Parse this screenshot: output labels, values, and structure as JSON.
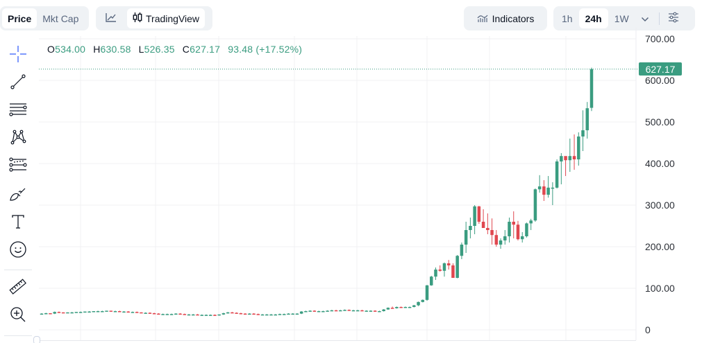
{
  "toolbar": {
    "type_options": [
      {
        "label": "Price",
        "active": true
      },
      {
        "label": "Mkt Cap",
        "active": false
      }
    ],
    "chart_options": [
      {
        "label": "",
        "icon": "line-chart-icon",
        "active": false
      },
      {
        "label": "TradingView",
        "icon": "candlestick-icon",
        "active": true
      }
    ],
    "indicators_label": "Indicators",
    "indicators_icon": "indicators-icon",
    "timeframes": [
      {
        "label": "1h",
        "active": false
      },
      {
        "label": "24h",
        "active": true
      },
      {
        "label": "1W",
        "active": false
      }
    ],
    "timeframe_more_icon": "chevron-down-icon",
    "settings_icon": "sliders-icon"
  },
  "drawing_tools": [
    {
      "name": "crosshair-icon",
      "active": true
    },
    {
      "name": "trend-line-icon"
    },
    {
      "name": "horizontal-lines-icon"
    },
    {
      "name": "pattern-icon"
    },
    {
      "name": "fib-retracement-icon"
    },
    {
      "name": "brush-icon"
    },
    {
      "name": "text-icon"
    },
    {
      "name": "emoji-icon"
    },
    {
      "name": "ruler-icon"
    },
    {
      "name": "zoom-in-icon"
    }
  ],
  "ohlc": {
    "open_key": "O",
    "open": "534.00",
    "high_key": "H",
    "high": "630.58",
    "low_key": "L",
    "low": "526.35",
    "close_key": "C",
    "close": "627.17",
    "change": "93.48 (+17.52%)"
  },
  "last_price_tag": "627.17",
  "colors": {
    "up": "#3a9c80",
    "down": "#e0474f",
    "grid": "#f0f1f3",
    "last_price_line": "#3a9c80"
  },
  "chart_data": {
    "type": "candlestick",
    "title": "",
    "xlabel": "",
    "ylabel": "Price",
    "ylim": [
      0,
      700
    ],
    "y_ticks": [
      "700.00",
      "600.00",
      "500.00",
      "400.00",
      "300.00",
      "200.00",
      "100.00",
      "0"
    ],
    "grid": true,
    "last_price": 627.17,
    "candles": [
      [
        38,
        40,
        37,
        39
      ],
      [
        39,
        41,
        38,
        40
      ],
      [
        40,
        40,
        38,
        39
      ],
      [
        39,
        44,
        38,
        43
      ],
      [
        43,
        44,
        41,
        42
      ],
      [
        42,
        42,
        40,
        41
      ],
      [
        41,
        42,
        40,
        42
      ],
      [
        42,
        43,
        41,
        42
      ],
      [
        42,
        43,
        41,
        43
      ],
      [
        43,
        44,
        42,
        43
      ],
      [
        43,
        44,
        42,
        44
      ],
      [
        44,
        45,
        43,
        44
      ],
      [
        44,
        45,
        43,
        45
      ],
      [
        45,
        46,
        44,
        45
      ],
      [
        45,
        46,
        44,
        45
      ],
      [
        45,
        46,
        44,
        46
      ],
      [
        46,
        46,
        44,
        45
      ],
      [
        45,
        46,
        44,
        45
      ],
      [
        45,
        46,
        43,
        44
      ],
      [
        44,
        45,
        43,
        44
      ],
      [
        44,
        45,
        42,
        43
      ],
      [
        43,
        44,
        42,
        43
      ],
      [
        43,
        44,
        41,
        42
      ],
      [
        42,
        42,
        40,
        41
      ],
      [
        41,
        42,
        40,
        41
      ],
      [
        41,
        42,
        39,
        40
      ],
      [
        40,
        41,
        38,
        39
      ],
      [
        39,
        40,
        37,
        38
      ],
      [
        38,
        39,
        37,
        38
      ],
      [
        38,
        39,
        37,
        38
      ],
      [
        38,
        39,
        37,
        38
      ],
      [
        38,
        40,
        37,
        39
      ],
      [
        39,
        40,
        37,
        38
      ],
      [
        38,
        39,
        36,
        37
      ],
      [
        37,
        38,
        36,
        37
      ],
      [
        37,
        38,
        36,
        37
      ],
      [
        37,
        38,
        35,
        36
      ],
      [
        36,
        37,
        35,
        36
      ],
      [
        36,
        37,
        35,
        36
      ],
      [
        36,
        37,
        35,
        36
      ],
      [
        36,
        37,
        34,
        35
      ],
      [
        35,
        37,
        34,
        37
      ],
      [
        37,
        41,
        36,
        40
      ],
      [
        40,
        43,
        39,
        42
      ],
      [
        42,
        43,
        40,
        41
      ],
      [
        41,
        42,
        39,
        40
      ],
      [
        40,
        41,
        38,
        39
      ],
      [
        39,
        40,
        37,
        38
      ],
      [
        38,
        40,
        37,
        39
      ],
      [
        39,
        40,
        37,
        38
      ],
      [
        38,
        39,
        36,
        37
      ],
      [
        37,
        38,
        36,
        37
      ],
      [
        37,
        38,
        36,
        37
      ],
      [
        37,
        38,
        36,
        37
      ],
      [
        37,
        38,
        36,
        37
      ],
      [
        37,
        39,
        36,
        38
      ],
      [
        38,
        39,
        37,
        38
      ],
      [
        38,
        40,
        37,
        39
      ],
      [
        39,
        40,
        38,
        39
      ],
      [
        39,
        40,
        38,
        39
      ],
      [
        39,
        45,
        38,
        44
      ],
      [
        44,
        46,
        43,
        45
      ],
      [
        45,
        47,
        44,
        46
      ],
      [
        46,
        47,
        44,
        45
      ],
      [
        45,
        46,
        44,
        45
      ],
      [
        45,
        46,
        44,
        45
      ],
      [
        45,
        47,
        44,
        46
      ],
      [
        46,
        48,
        45,
        47
      ],
      [
        47,
        48,
        45,
        46
      ],
      [
        46,
        48,
        45,
        47
      ],
      [
        47,
        49,
        46,
        48
      ],
      [
        48,
        49,
        46,
        47
      ],
      [
        47,
        48,
        46,
        47
      ],
      [
        47,
        48,
        46,
        47
      ],
      [
        47,
        48,
        45,
        46
      ],
      [
        46,
        47,
        45,
        46
      ],
      [
        46,
        47,
        45,
        46
      ],
      [
        46,
        47,
        44,
        45
      ],
      [
        45,
        46,
        44,
        45
      ],
      [
        45,
        50,
        44,
        49
      ],
      [
        49,
        54,
        48,
        53
      ],
      [
        53,
        56,
        51,
        52
      ],
      [
        52,
        56,
        51,
        55
      ],
      [
        55,
        56,
        53,
        54
      ],
      [
        54,
        56,
        53,
        55
      ],
      [
        55,
        56,
        53,
        55
      ],
      [
        55,
        60,
        54,
        59
      ],
      [
        59,
        68,
        57,
        67
      ],
      [
        67,
        73,
        66,
        72
      ],
      [
        72,
        108,
        70,
        107
      ],
      [
        107,
        130,
        106,
        128
      ],
      [
        128,
        150,
        120,
        145
      ],
      [
        145,
        155,
        140,
        142
      ],
      [
        142,
        162,
        128,
        160
      ],
      [
        160,
        168,
        145,
        155
      ],
      [
        155,
        160,
        125,
        125
      ],
      [
        125,
        180,
        124,
        178
      ],
      [
        178,
        210,
        170,
        205
      ],
      [
        205,
        260,
        185,
        240
      ],
      [
        240,
        270,
        220,
        250
      ],
      [
        250,
        300,
        230,
        297
      ],
      [
        297,
        298,
        255,
        260
      ],
      [
        260,
        290,
        250,
        245
      ],
      [
        245,
        280,
        230,
        240
      ],
      [
        240,
        268,
        205,
        228
      ],
      [
        228,
        240,
        200,
        205
      ],
      [
        205,
        220,
        195,
        215
      ],
      [
        215,
        240,
        205,
        225
      ],
      [
        225,
        270,
        210,
        260
      ],
      [
        260,
        285,
        220,
        253
      ],
      [
        253,
        262,
        215,
        218
      ],
      [
        218,
        235,
        210,
        225
      ],
      [
        225,
        258,
        222,
        256
      ],
      [
        256,
        267,
        240,
        263
      ],
      [
        263,
        340,
        260,
        338
      ],
      [
        338,
        372,
        330,
        345
      ],
      [
        345,
        360,
        310,
        325
      ],
      [
        325,
        370,
        318,
        342
      ],
      [
        342,
        355,
        300,
        342
      ],
      [
        342,
        410,
        340,
        405
      ],
      [
        405,
        425,
        350,
        418
      ],
      [
        418,
        410,
        370,
        408
      ],
      [
        408,
        460,
        380,
        418
      ],
      [
        418,
        470,
        385,
        410
      ],
      [
        410,
        475,
        395,
        465
      ],
      [
        465,
        528,
        430,
        480
      ],
      [
        480,
        548,
        460,
        533
      ],
      [
        534,
        630.58,
        526.35,
        627.17
      ]
    ]
  }
}
